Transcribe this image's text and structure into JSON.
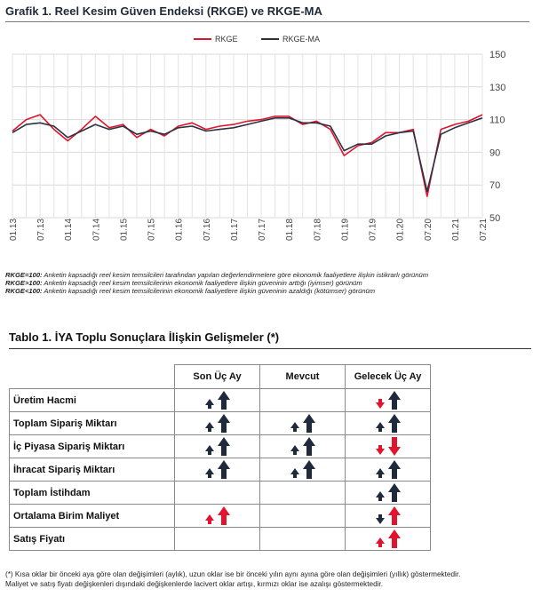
{
  "chart_title": "Grafik 1. Reel Kesim Güven Endeksi (RKGE) ve RKGE-MA",
  "chart_data": {
    "type": "line",
    "categories": [
      "01.13",
      "04.13",
      "07.13",
      "10.13",
      "01.14",
      "04.14",
      "07.14",
      "10.14",
      "01.15",
      "04.15",
      "07.15",
      "10.15",
      "01.16",
      "04.16",
      "07.16",
      "10.16",
      "01.17",
      "04.17",
      "07.17",
      "10.17",
      "01.18",
      "04.18",
      "07.18",
      "10.18",
      "01.19",
      "04.19",
      "07.19",
      "10.19",
      "01.20",
      "04.20",
      "07.20",
      "10.20",
      "01.21",
      "04.21",
      "07.21"
    ],
    "x_tick_labels": [
      "01.13",
      "07.13",
      "01.14",
      "07.14",
      "01.15",
      "07.15",
      "01.16",
      "07.16",
      "01.17",
      "07.17",
      "01.18",
      "07.18",
      "01.19",
      "07.19",
      "01.20",
      "07.20",
      "01.21",
      "07.21"
    ],
    "series": [
      {
        "name": "RKGE",
        "color": "#e0142c",
        "values": [
          103,
          110,
          113,
          104,
          97,
          104,
          112,
          105,
          107,
          99,
          104,
          100,
          106,
          108,
          104,
          106,
          107,
          109,
          110,
          112,
          112,
          107,
          109,
          104,
          88,
          94,
          96,
          102,
          102,
          104,
          63,
          104,
          107,
          109,
          113
        ]
      },
      {
        "name": "RKGE-MA",
        "color": "#2a3242",
        "values": [
          102,
          107,
          108,
          106,
          99,
          103,
          107,
          104,
          106,
          101,
          103,
          101,
          105,
          106,
          103,
          104,
          105,
          107,
          109,
          111,
          111,
          108,
          108,
          106,
          91,
          95,
          95,
          100,
          102,
          103,
          66,
          101,
          105,
          108,
          111
        ]
      }
    ],
    "ylim": [
      50,
      150
    ],
    "y_ticks": [
      50,
      70,
      90,
      110,
      130,
      150
    ],
    "grid": true,
    "legend": "top-center"
  },
  "notes": [
    {
      "key": "RKGE=100:",
      "text": "Anketin kapsadığı reel kesim temsilcileri tarafından yapılan değerlendirmelere göre ekonomik faaliyetlere ilişkin istikrarlı görünüm"
    },
    {
      "key": "RKGE>100:",
      "text": "Anketin kapsadığı reel kesim temsilcilerinin ekonomik faaliyetlere ilişkin güveninin arttığı (iyimser) görünüm"
    },
    {
      "key": "RKGE<100:",
      "text": "Anketin kapsadığı reel kesim temsilcilerinin ekonomik faaliyetlere ilişkin güveninin azaldığı (kötümser) görünüm"
    }
  ],
  "table_title": "Tablo 1. İYA Toplu Sonuçlara İlişkin Gelişmeler (*)",
  "table": {
    "headers": [
      "Son Üç Ay",
      "Mevcut",
      "Gelecek Üç Ay"
    ],
    "rows": [
      {
        "label": "Üretim Hacmi",
        "cells": [
          [
            "navy-up",
            "navy-up"
          ],
          [],
          [
            "red-down",
            "navy-up"
          ]
        ]
      },
      {
        "label": "Toplam Sipariş Miktarı",
        "cells": [
          [
            "navy-up",
            "navy-up"
          ],
          [
            "navy-up",
            "navy-up"
          ],
          [
            "navy-up",
            "navy-up"
          ]
        ]
      },
      {
        "label": "İç Piyasa Sipariş Miktarı",
        "cells": [
          [
            "navy-up",
            "navy-up"
          ],
          [
            "navy-up",
            "navy-up"
          ],
          [
            "red-down",
            "red-down"
          ]
        ]
      },
      {
        "label": "İhracat Sipariş Miktarı",
        "cells": [
          [
            "navy-up",
            "navy-up"
          ],
          [
            "navy-up",
            "navy-up"
          ],
          [
            "navy-up",
            "navy-up"
          ]
        ]
      },
      {
        "label": "Toplam İstihdam",
        "cells": [
          [],
          [],
          [
            "navy-up",
            "navy-up"
          ]
        ]
      },
      {
        "label": "Ortalama Birim Maliyet",
        "cells": [
          [
            "red-up",
            "red-up"
          ],
          [],
          [
            "navy-down",
            "red-up"
          ]
        ]
      },
      {
        "label": "Satış Fiyatı",
        "cells": [
          [],
          [],
          [
            "red-up",
            "red-up"
          ]
        ]
      }
    ]
  },
  "footnote": [
    "(*)  Kısa oklar bir önceki aya göre olan değişimleri (aylık), uzun oklar ise bir önceki yılın aynı ayına göre olan değişimleri (yıllık) göstermektedir.",
    "Maliyet ve satış fiyatı değişkenleri dışındaki değişkenlerde lacivert oklar artışı, kırmızı oklar ise azalışı göstermektedir."
  ],
  "colors": {
    "navy": "#1f2a3c",
    "red": "#e0142c"
  }
}
